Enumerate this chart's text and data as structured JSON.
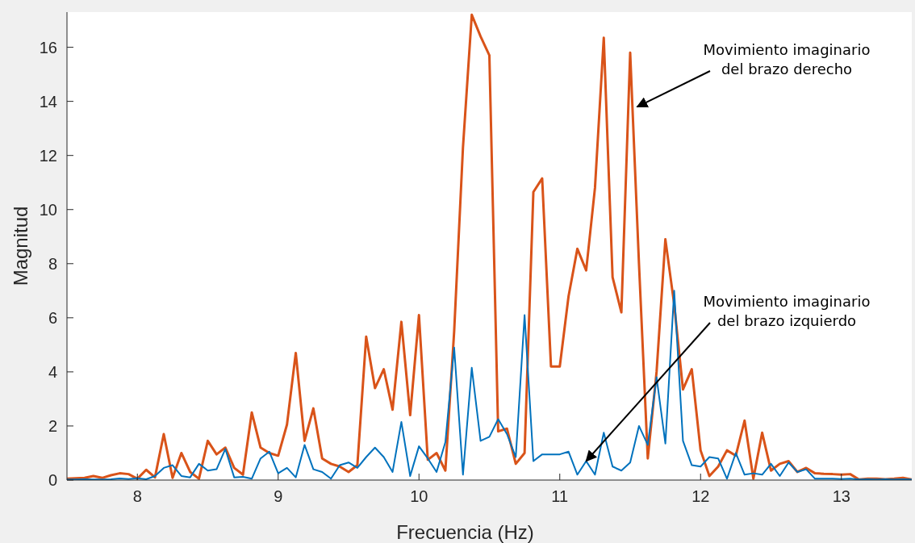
{
  "chart_data": {
    "type": "line",
    "xlabel": "Frecuencia (Hz)",
    "ylabel": "Magnitud",
    "xlim": [
      7.5,
      13.5
    ],
    "ylim": [
      0,
      17.3
    ],
    "xticks": [
      8,
      9,
      10,
      11,
      12,
      13
    ],
    "yticks": [
      0,
      2,
      4,
      6,
      8,
      10,
      12,
      14,
      16
    ],
    "grid": false,
    "marker": "none",
    "line_style": "solid",
    "x": [
      7.5,
      7.5625,
      7.625,
      7.6875,
      7.75,
      7.8125,
      7.875,
      7.9375,
      8.0,
      8.0625,
      8.125,
      8.1875,
      8.25,
      8.3125,
      8.375,
      8.4375,
      8.5,
      8.5625,
      8.625,
      8.6875,
      8.75,
      8.8125,
      8.875,
      8.9375,
      9.0,
      9.0625,
      9.125,
      9.1875,
      9.25,
      9.3125,
      9.375,
      9.4375,
      9.5,
      9.5625,
      9.625,
      9.6875,
      9.75,
      9.8125,
      9.875,
      9.9375,
      10.0,
      10.0625,
      10.125,
      10.1875,
      10.25,
      10.3125,
      10.375,
      10.4375,
      10.5,
      10.5625,
      10.625,
      10.6875,
      10.75,
      10.8125,
      10.875,
      10.9375,
      11.0,
      11.0625,
      11.125,
      11.1875,
      11.25,
      11.3125,
      11.375,
      11.4375,
      11.5,
      11.5625,
      11.625,
      11.6875,
      11.75,
      11.8125,
      11.875,
      11.9375,
      12.0,
      12.0625,
      12.125,
      12.1875,
      12.25,
      12.3125,
      12.375,
      12.4375,
      12.5,
      12.5625,
      12.625,
      12.6875,
      12.75,
      12.8125,
      12.875,
      12.9375,
      13.0,
      13.0625,
      13.125,
      13.1875,
      13.25,
      13.3125,
      13.375,
      13.4375,
      13.5
    ],
    "series": [
      {
        "color": "#d95319",
        "values": [
          0.05,
          0.07,
          0.08,
          0.15,
          0.08,
          0.18,
          0.25,
          0.22,
          0.05,
          0.38,
          0.1,
          1.7,
          0.08,
          1.0,
          0.3,
          0.05,
          1.45,
          0.95,
          1.2,
          0.45,
          0.2,
          2.5,
          1.2,
          1.0,
          0.9,
          2.05,
          4.7,
          1.45,
          2.65,
          0.8,
          0.6,
          0.5,
          0.3,
          0.55,
          5.3,
          3.4,
          4.1,
          2.6,
          5.85,
          2.4,
          6.1,
          0.75,
          1.0,
          0.35,
          5.5,
          12.3,
          17.2,
          16.4,
          15.7,
          1.8,
          1.9,
          0.6,
          1.0,
          10.65,
          11.15,
          4.2,
          4.2,
          6.8,
          8.55,
          7.75,
          10.8,
          16.35,
          7.5,
          6.2,
          15.8,
          8.0,
          0.8,
          4.0,
          8.9,
          6.5,
          3.35,
          4.1,
          1.1,
          0.15,
          0.5,
          1.1,
          0.9,
          2.2,
          0.05,
          1.75,
          0.35,
          0.6,
          0.7,
          0.3,
          0.45,
          0.25,
          0.23,
          0.22,
          0.2,
          0.22,
          0.02,
          0.05,
          0.05,
          0.03,
          0.05,
          0.08,
          0.02
        ]
      },
      {
        "color": "#0072bd",
        "values": [
          0.02,
          0.02,
          0.03,
          0.02,
          0.02,
          0.03,
          0.06,
          0.04,
          0.07,
          0.03,
          0.15,
          0.45,
          0.55,
          0.15,
          0.1,
          0.6,
          0.35,
          0.4,
          1.15,
          0.1,
          0.12,
          0.05,
          0.8,
          1.05,
          0.25,
          0.45,
          0.1,
          1.3,
          0.4,
          0.3,
          0.05,
          0.55,
          0.65,
          0.45,
          0.85,
          1.2,
          0.85,
          0.3,
          2.15,
          0.15,
          1.25,
          0.8,
          0.3,
          1.4,
          4.9,
          0.2,
          4.15,
          1.45,
          1.6,
          2.25,
          1.7,
          0.85,
          6.1,
          0.7,
          0.95,
          0.95,
          0.95,
          1.05,
          0.2,
          0.7,
          0.2,
          1.75,
          0.5,
          0.35,
          0.65,
          2.0,
          1.3,
          3.8,
          1.35,
          7.0,
          1.45,
          0.55,
          0.5,
          0.85,
          0.8,
          0.05,
          1.0,
          0.2,
          0.25,
          0.2,
          0.6,
          0.15,
          0.65,
          0.3,
          0.4,
          0.05,
          0.05,
          0.05,
          0.04,
          0.05,
          0.02,
          0.03,
          0.02,
          0.03,
          0.02,
          0.03,
          0.02
        ]
      }
    ],
    "annotations": [
      {
        "text": "Movimiento imaginario del brazo derecho",
        "x": 11.55,
        "y": 13.8
      },
      {
        "text": "Movimiento imaginario del brazo izquierdo",
        "x": 11.1875,
        "y": 0.7
      }
    ]
  }
}
